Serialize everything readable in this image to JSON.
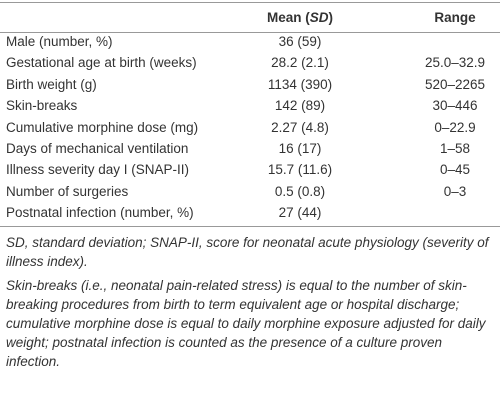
{
  "table": {
    "header": {
      "mean_sd": {
        "before": "Mean (",
        "em": "SD",
        "after": ")"
      },
      "range": "Range"
    },
    "rows": [
      [
        "Male (number, %)",
        "36 (59)"
      ],
      [
        "Gestational age at birth (weeks)",
        "28.2 (2.1)",
        "25.0–32.9"
      ],
      [
        "Birth weight (g)",
        "1134 (390)",
        "520–2265"
      ],
      [
        "Skin-breaks",
        "142 (89)",
        "30–446"
      ],
      [
        "Cumulative morphine dose (mg)",
        "2.27 (4.8)",
        "0–22.9"
      ],
      [
        "Days of mechanical ventilation",
        "16 (17)",
        "1–58"
      ],
      [
        "Illness severity day I (SNAP-II)",
        "15.7 (11.6)",
        "0–45"
      ],
      [
        "Number of surgeries",
        "0.5 (0.8)",
        "0–3"
      ],
      [
        "Postnatal infection (number, %)",
        "27 (44)"
      ]
    ]
  },
  "footnotes": [
    "SD, standard deviation; SNAP-II, score for neonatal acute physiology (severity of illness index).",
    "Skin-breaks (i.e., neonatal pain-related stress) is equal to the number of skin-breaking procedures from birth to term equivalent age or hospital discharge; cumulative morphine dose is equal to daily morphine exposure adjusted for daily weight; postnatal infection is counted as the presence of a culture proven infection."
  ]
}
